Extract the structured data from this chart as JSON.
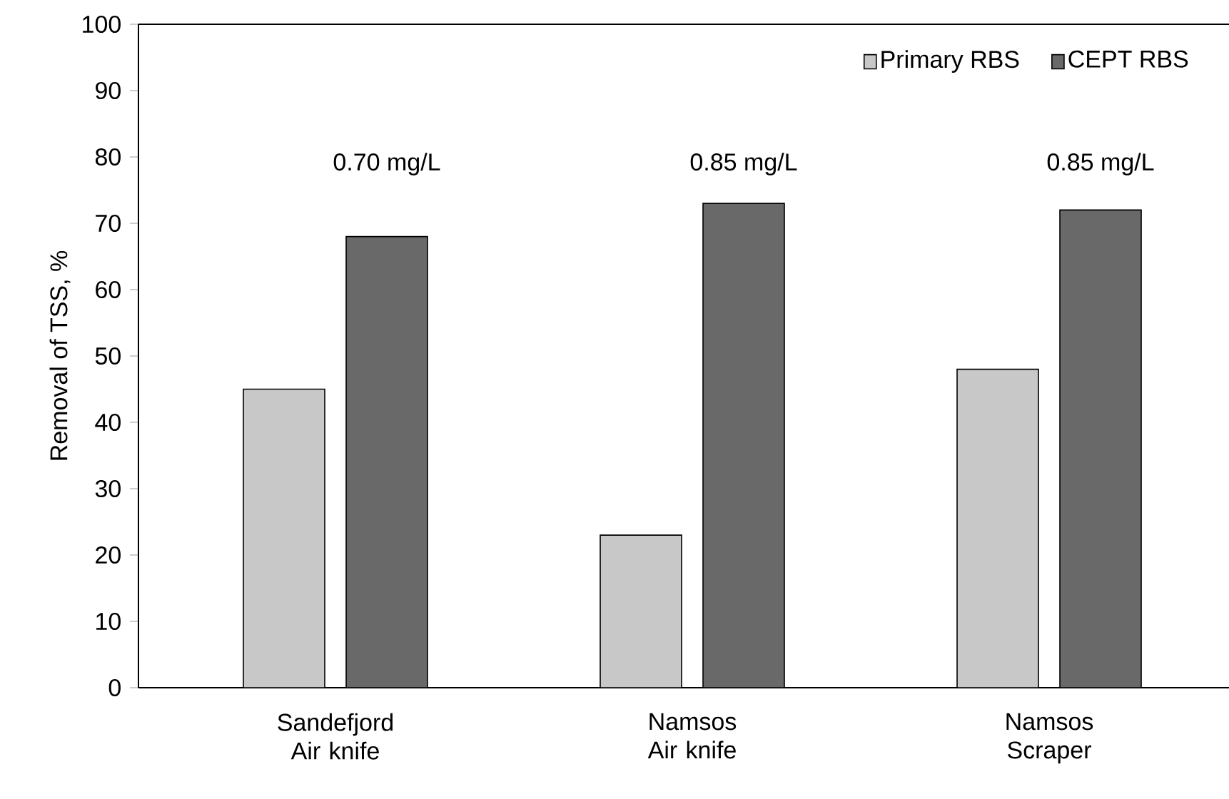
{
  "chart_data": {
    "type": "bar",
    "ylabel": "Removal of TSS, %",
    "categories": [
      "Sandefjord Air knife",
      "Namsos Air knife",
      "Namsos Scraper"
    ],
    "series": [
      {
        "name": "Primary RBS",
        "color": "#c8c8c8",
        "values": [
          45,
          23,
          48
        ]
      },
      {
        "name": "CEPT RBS",
        "color": "#696969",
        "values": [
          68,
          73,
          72
        ]
      }
    ],
    "annotations": [
      "0.70 mg/L",
      "0.85 mg/L",
      "0.85 mg/L"
    ],
    "ylim": [
      0,
      100
    ],
    "yticks": [
      0,
      10,
      20,
      30,
      40,
      50,
      60,
      70,
      80,
      90,
      100
    ],
    "legend": "top right",
    "grid": false
  }
}
